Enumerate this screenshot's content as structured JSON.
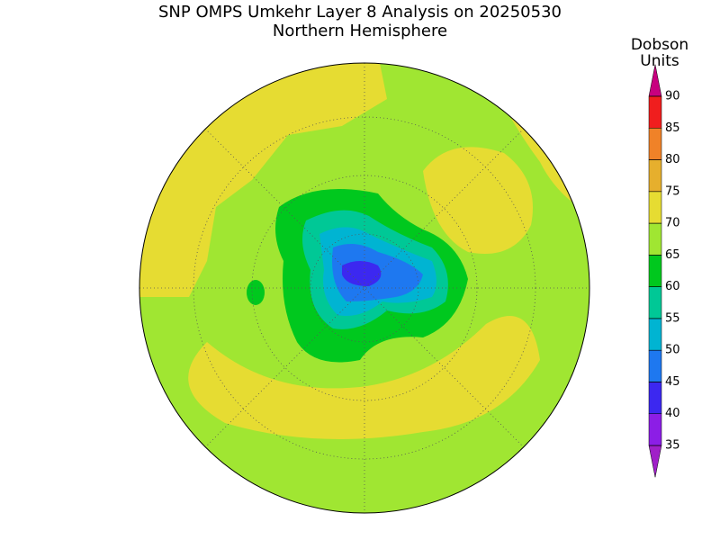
{
  "title": "SNP OMPS Umkehr Layer 8 Analysis on 20250530",
  "subtitle": "Northern Hemisphere",
  "colorbar": {
    "title_lines": [
      "Dobson",
      "Units"
    ],
    "levels": [
      35,
      40,
      45,
      50,
      55,
      60,
      65,
      70,
      75,
      80,
      85,
      90
    ],
    "colors": [
      "#a020c8",
      "#8c1ee6",
      "#3c28f0",
      "#1e78f0",
      "#00b4d2",
      "#00c896",
      "#00c81e",
      "#a0e632",
      "#e6dc32",
      "#e6af2d",
      "#f08228",
      "#f01e1e",
      "#c8007f"
    ]
  }
}
